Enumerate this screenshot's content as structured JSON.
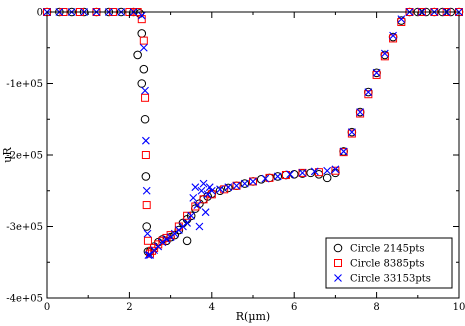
{
  "chart_data": {
    "type": "scatter",
    "title": "",
    "xlabel": "R(µm)",
    "ylabel": "uR",
    "xlim": [
      0,
      10
    ],
    "ylim": [
      -400000,
      0
    ],
    "x_ticks": [
      0,
      2,
      4,
      6,
      8,
      10
    ],
    "x_tick_labels": [
      "0",
      "2",
      "4",
      "6",
      "8",
      "10"
    ],
    "y_ticks": [
      0,
      -100000,
      -200000,
      -300000,
      -400000
    ],
    "y_tick_labels": [
      "0",
      "-1e+05",
      "-2e+05",
      "-3e+05",
      "-4e+05"
    ],
    "grid": false,
    "legend_position": "bottom-right",
    "series": [
      {
        "name": "Circle 2145pts",
        "marker": "circle",
        "color": "#000000",
        "points": [
          [
            0.0,
            0
          ],
          [
            0.3,
            0
          ],
          [
            0.6,
            0
          ],
          [
            0.9,
            0
          ],
          [
            1.2,
            0
          ],
          [
            1.5,
            0
          ],
          [
            1.8,
            0
          ],
          [
            2.1,
            0
          ],
          [
            2.25,
            -2000
          ],
          [
            2.3,
            -30000
          ],
          [
            2.35,
            -80000
          ],
          [
            2.38,
            -150000
          ],
          [
            2.4,
            -230000
          ],
          [
            2.42,
            -300000
          ],
          [
            2.45,
            -335000
          ],
          [
            2.5,
            -335000
          ],
          [
            2.6,
            -328000
          ],
          [
            2.7,
            -322000
          ],
          [
            2.8,
            -318000
          ],
          [
            2.9,
            -320000
          ],
          [
            3.0,
            -315000
          ],
          [
            3.1,
            -312000
          ],
          [
            3.2,
            -305000
          ],
          [
            3.3,
            -295000
          ],
          [
            3.4,
            -290000
          ],
          [
            3.5,
            -285000
          ],
          [
            3.6,
            -275000
          ],
          [
            3.7,
            -268000
          ],
          [
            3.8,
            -262000
          ],
          [
            3.9,
            -258000
          ],
          [
            4.0,
            -254000
          ],
          [
            4.2,
            -250000
          ],
          [
            4.4,
            -246000
          ],
          [
            4.6,
            -243000
          ],
          [
            4.8,
            -240000
          ],
          [
            5.0,
            -237000
          ],
          [
            5.2,
            -234000
          ],
          [
            5.4,
            -232000
          ],
          [
            5.6,
            -230000
          ],
          [
            5.8,
            -228000
          ],
          [
            6.0,
            -227000
          ],
          [
            6.2,
            -226000
          ],
          [
            6.4,
            -225000
          ],
          [
            6.6,
            -227000
          ],
          [
            6.8,
            -232000
          ],
          [
            7.0,
            -225000
          ],
          [
            7.2,
            -195000
          ],
          [
            7.4,
            -168000
          ],
          [
            7.6,
            -140000
          ],
          [
            7.8,
            -112000
          ],
          [
            8.0,
            -85000
          ],
          [
            8.2,
            -60000
          ],
          [
            8.4,
            -35000
          ],
          [
            8.6,
            -12000
          ],
          [
            8.8,
            0
          ],
          [
            9.0,
            0
          ],
          [
            9.2,
            0
          ],
          [
            9.4,
            0
          ],
          [
            9.6,
            0
          ],
          [
            9.8,
            0
          ],
          [
            10.0,
            0
          ],
          [
            3.4,
            -320000
          ],
          [
            2.2,
            -60000
          ],
          [
            2.3,
            -100000
          ]
        ]
      },
      {
        "name": "Circle 8385pts",
        "marker": "square",
        "color": "#ff0000",
        "points": [
          [
            0.0,
            0
          ],
          [
            0.4,
            0
          ],
          [
            0.8,
            0
          ],
          [
            1.2,
            0
          ],
          [
            1.6,
            0
          ],
          [
            2.0,
            0
          ],
          [
            2.2,
            0
          ],
          [
            2.3,
            -10000
          ],
          [
            2.35,
            -40000
          ],
          [
            2.38,
            -120000
          ],
          [
            2.4,
            -200000
          ],
          [
            2.42,
            -270000
          ],
          [
            2.45,
            -320000
          ],
          [
            2.5,
            -338000
          ],
          [
            2.55,
            -334000
          ],
          [
            2.6,
            -330000
          ],
          [
            2.7,
            -325000
          ],
          [
            2.8,
            -320000
          ],
          [
            2.9,
            -316000
          ],
          [
            3.0,
            -312000
          ],
          [
            3.2,
            -300000
          ],
          [
            3.4,
            -285000
          ],
          [
            3.6,
            -272000
          ],
          [
            3.8,
            -262000
          ],
          [
            4.0,
            -255000
          ],
          [
            4.3,
            -248000
          ],
          [
            4.6,
            -243000
          ],
          [
            5.0,
            -237000
          ],
          [
            5.4,
            -232000
          ],
          [
            5.8,
            -228000
          ],
          [
            6.2,
            -225000
          ],
          [
            6.6,
            -224000
          ],
          [
            7.0,
            -222000
          ],
          [
            7.2,
            -196000
          ],
          [
            7.4,
            -170000
          ],
          [
            7.6,
            -142000
          ],
          [
            7.8,
            -115000
          ],
          [
            8.0,
            -88000
          ],
          [
            8.2,
            -62000
          ],
          [
            8.4,
            -37000
          ],
          [
            8.6,
            -14000
          ],
          [
            8.8,
            0
          ],
          [
            9.1,
            0
          ],
          [
            9.4,
            0
          ],
          [
            9.7,
            0
          ],
          [
            10.0,
            0
          ]
        ]
      },
      {
        "name": "Circle 33153pts",
        "marker": "x",
        "color": "#0000ff",
        "points": [
          [
            0.0,
            0
          ],
          [
            0.3,
            0
          ],
          [
            0.6,
            0
          ],
          [
            0.9,
            0
          ],
          [
            1.2,
            0
          ],
          [
            1.5,
            0
          ],
          [
            1.8,
            0
          ],
          [
            2.1,
            0
          ],
          [
            2.3,
            -5000
          ],
          [
            2.35,
            -50000
          ],
          [
            2.38,
            -110000
          ],
          [
            2.4,
            -180000
          ],
          [
            2.42,
            -250000
          ],
          [
            2.44,
            -310000
          ],
          [
            2.46,
            -340000
          ],
          [
            2.5,
            -340000
          ],
          [
            2.6,
            -333000
          ],
          [
            2.7,
            -328000
          ],
          [
            2.8,
            -322000
          ],
          [
            2.9,
            -318000
          ],
          [
            3.0,
            -315000
          ],
          [
            3.1,
            -310000
          ],
          [
            3.2,
            -305000
          ],
          [
            3.3,
            -300000
          ],
          [
            3.4,
            -295000
          ],
          [
            3.5,
            -285000
          ],
          [
            3.55,
            -260000
          ],
          [
            3.6,
            -245000
          ],
          [
            3.65,
            -270000
          ],
          [
            3.7,
            -300000
          ],
          [
            3.75,
            -250000
          ],
          [
            3.8,
            -240000
          ],
          [
            3.85,
            -280000
          ],
          [
            3.9,
            -255000
          ],
          [
            3.95,
            -245000
          ],
          [
            4.0,
            -250000
          ],
          [
            4.2,
            -248000
          ],
          [
            4.4,
            -245000
          ],
          [
            4.6,
            -243000
          ],
          [
            4.8,
            -240000
          ],
          [
            5.0,
            -237000
          ],
          [
            5.3,
            -233000
          ],
          [
            5.6,
            -230000
          ],
          [
            5.9,
            -227000
          ],
          [
            6.2,
            -225000
          ],
          [
            6.5,
            -223000
          ],
          [
            6.8,
            -222000
          ],
          [
            7.0,
            -220000
          ],
          [
            7.2,
            -195000
          ],
          [
            7.4,
            -168000
          ],
          [
            7.6,
            -140000
          ],
          [
            7.8,
            -112000
          ],
          [
            8.0,
            -85000
          ],
          [
            8.2,
            -58000
          ],
          [
            8.4,
            -33000
          ],
          [
            8.6,
            -10000
          ],
          [
            8.8,
            0
          ],
          [
            9.1,
            0
          ],
          [
            9.4,
            0
          ],
          [
            9.7,
            0
          ],
          [
            10.0,
            0
          ]
        ]
      }
    ]
  }
}
